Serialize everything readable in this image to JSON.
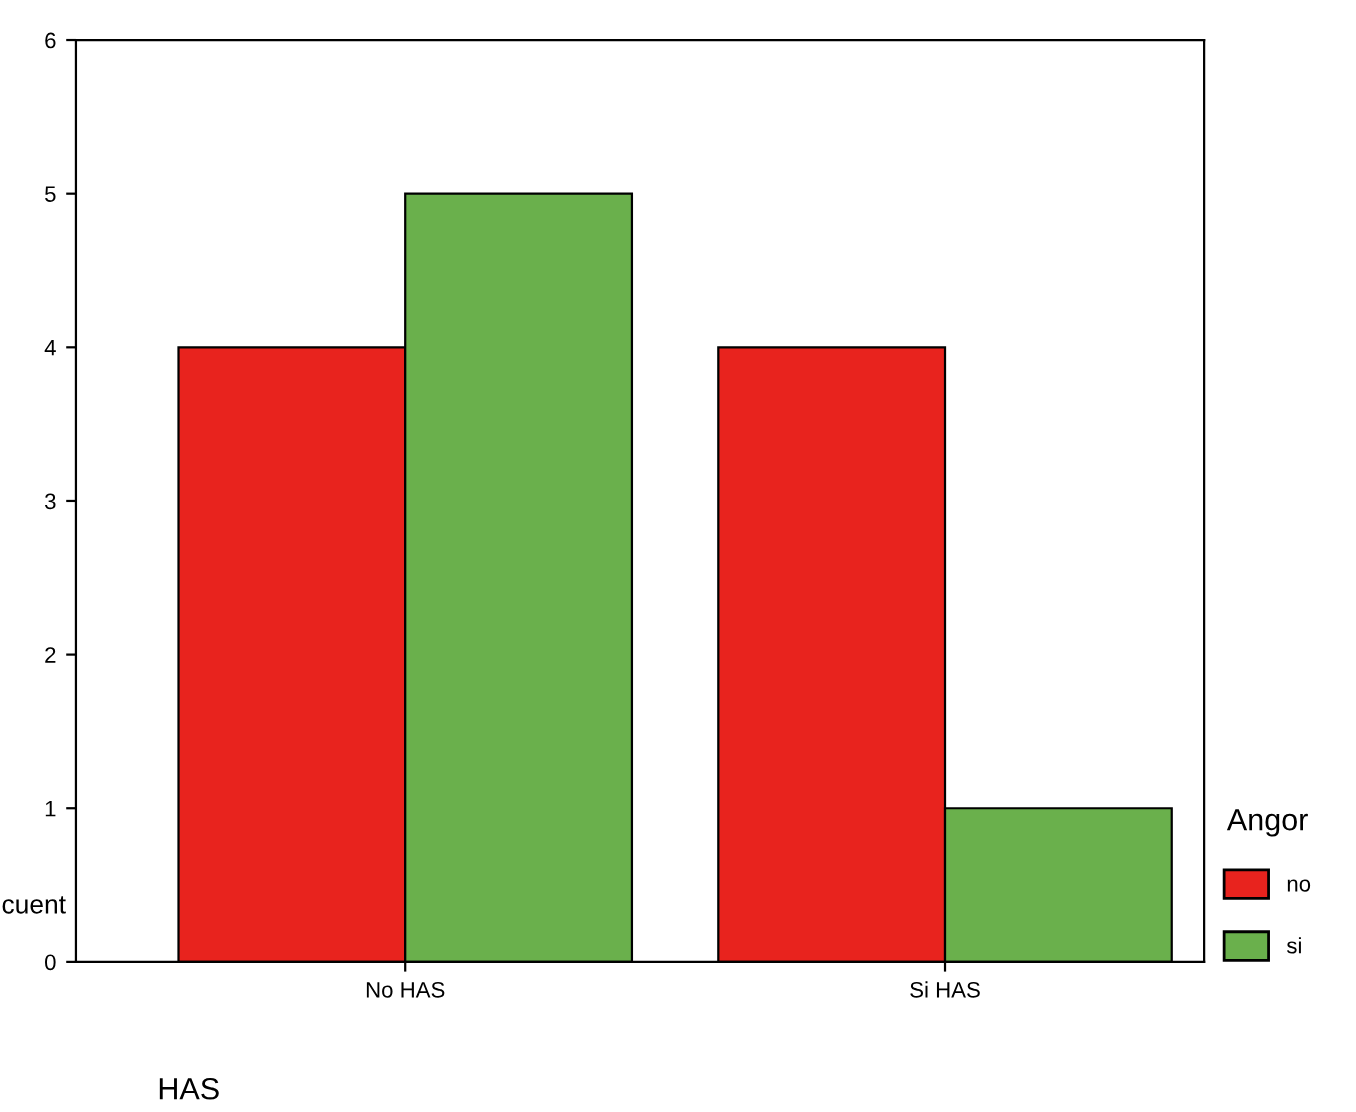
{
  "chart_data": {
    "type": "bar",
    "xlabel": "HAS",
    "ylabel": "cuent",
    "legend_title": "Angor",
    "categories": [
      "No HAS",
      "Si HAS"
    ],
    "series": [
      {
        "name": "no",
        "color": "#e8231e",
        "values": [
          4,
          4
        ]
      },
      {
        "name": "si",
        "color": "#6ab04c",
        "values": [
          5,
          1
        ]
      }
    ],
    "ylim": [
      0,
      6
    ],
    "yticks": [
      0,
      1,
      2,
      3,
      4,
      5,
      6
    ],
    "grid": false,
    "legend": "bottom right"
  }
}
